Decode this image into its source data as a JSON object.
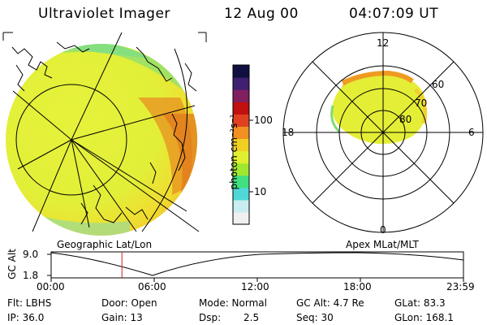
{
  "header": {
    "instrument": "Ultraviolet Imager",
    "date": "12 Aug 00",
    "time": "04:07:09 UT"
  },
  "colorbar": {
    "unit_label": "photon cm⁻²s⁻¹",
    "tick_100": "100",
    "tick_10": "10",
    "colors": [
      "#f0f0f0",
      "#c8eef0",
      "#50d8d8",
      "#40e080",
      "#a0e830",
      "#e0f030",
      "#f0d020",
      "#f09020",
      "#e04020",
      "#c01010",
      "#802060",
      "#402070",
      "#101040"
    ]
  },
  "geographic": {
    "label": "Geographic Lat/Lon"
  },
  "apex": {
    "label": "Apex MLat/MLT",
    "mlt_12": "12",
    "mlt_18": "18",
    "mlt_6": "6",
    "mlt_0": "0",
    "lat_60": "60",
    "lat_70": "70",
    "lat_80": "80"
  },
  "altitude_plot": {
    "axis_label": "GC Alt",
    "y_max": "9.0",
    "y_min": "1.8",
    "time_ticks": [
      "00:00",
      "06:00",
      "12:00",
      "18:00",
      "23:59"
    ],
    "current_time_hours": 4.12,
    "marker_color": "#d02020"
  },
  "info": {
    "filter": "Flt: LBHS",
    "door": "Door: Open",
    "mode": "Mode: Normal",
    "gc_alt": "GC Alt: 4.7 Re",
    "glat": "GLat: 83.3",
    "ip": "IP: 36.0",
    "gain": "Gain: 13",
    "dsp_label": "Dsp:",
    "dsp_value": "2.5",
    "seq": "Seq: 30",
    "glon": "GLon: 168.1"
  }
}
